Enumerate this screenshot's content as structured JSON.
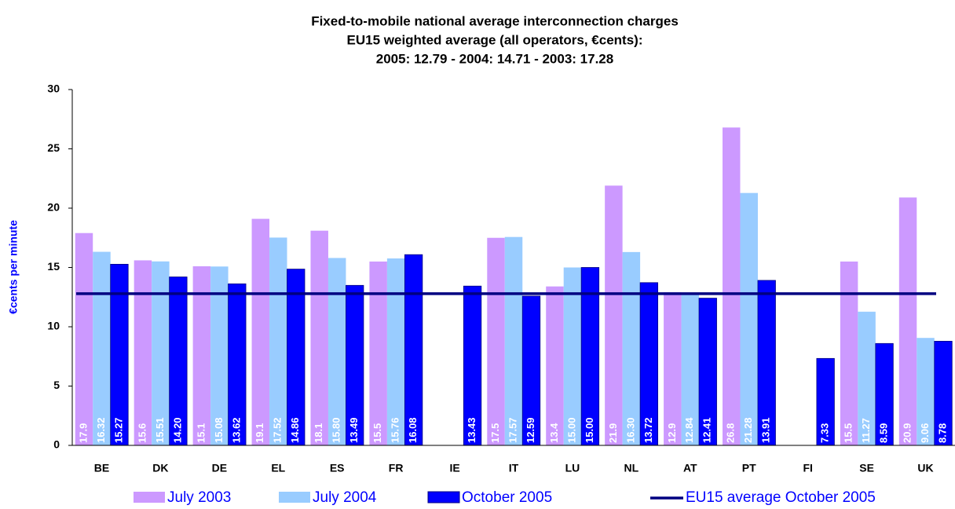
{
  "chart_data": {
    "type": "bar",
    "title": [
      "Fixed-to-mobile national average interconnection charges",
      "EU15  weighted average (all operators, €cents):",
      "2005: 12.79 -   2004: 14.71 - 2003: 17.28"
    ],
    "y_label": "€cents per minute",
    "categories": [
      "BE",
      "DK",
      "DE",
      "EL",
      "ES",
      "FR",
      "IE",
      "IT",
      "LU",
      "NL",
      "AT",
      "PT",
      "FI",
      "SE",
      "UK"
    ],
    "series": [
      {
        "name": "July 2003",
        "color": "#cc99ff",
        "values": [
          17.9,
          15.6,
          15.1,
          19.1,
          18.1,
          15.5,
          null,
          17.5,
          13.4,
          21.9,
          12.9,
          26.8,
          null,
          15.5,
          20.9
        ],
        "value_labels": [
          "17.9",
          "15.6",
          "15.1",
          "19.1",
          "18.1",
          "15.5",
          null,
          "17.5",
          "13.4",
          "21.9",
          "12.9",
          "26.8",
          null,
          "15.5",
          "20.9"
        ]
      },
      {
        "name": "July 2004",
        "color": "#99ccff",
        "values": [
          16.32,
          15.51,
          15.08,
          17.52,
          15.8,
          15.76,
          null,
          17.57,
          15.0,
          16.3,
          12.84,
          21.28,
          null,
          11.27,
          9.06
        ],
        "value_labels": [
          "16.32",
          "15.51",
          "15.08",
          "17.52",
          "15.80",
          "15.76",
          null,
          "17.57",
          "15.00",
          "16.30",
          "12.84",
          "21.28",
          null,
          "11.27",
          "9.06"
        ]
      },
      {
        "name": "October 2005",
        "color": "#0000ff",
        "values": [
          15.27,
          14.2,
          13.62,
          14.86,
          13.49,
          16.08,
          13.43,
          12.59,
          15.0,
          13.72,
          12.41,
          13.91,
          7.33,
          8.59,
          8.78
        ],
        "value_labels": [
          "15.27",
          "14.20",
          "13.62",
          "14.86",
          "13.49",
          "16.08",
          "13.43",
          "12.59",
          "15.00",
          "13.72",
          "12.41",
          "13.91",
          "7.33",
          "8.59",
          "8.78"
        ]
      }
    ],
    "average_line": {
      "name": "EU15 average October 2005",
      "color": "#000080",
      "value": 12.79
    },
    "ylim": [
      0,
      30
    ],
    "yticks": [
      0,
      5,
      10,
      15,
      20,
      25,
      30
    ],
    "grid": false
  }
}
